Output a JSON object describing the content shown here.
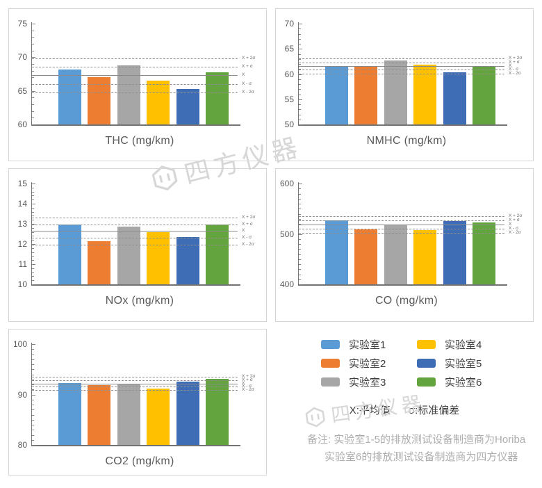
{
  "stat_labels": [
    "X + 2σ",
    "X + σ",
    "X",
    "X - σ",
    "X - 2σ"
  ],
  "legend": {
    "labs": [
      {
        "name": "实验室1",
        "color": "#5B9BD5"
      },
      {
        "name": "实验室2",
        "color": "#ED7D31"
      },
      {
        "name": "实验室3",
        "color": "#A6A6A6"
      },
      {
        "name": "实验室4",
        "color": "#FFC000"
      },
      {
        "name": "实验室5",
        "color": "#3E6CB5"
      },
      {
        "name": "实验室6",
        "color": "#63A43F"
      }
    ],
    "stat_note_x": "X:平均值",
    "stat_note_sigma": "σ:标准偏差",
    "note_line1": "备注: 实验室1-5的排放测试设备制造商为Horiba",
    "note_line2": "实验室6的排放测试设备制造商为四方仪器"
  },
  "watermark": {
    "text": "四方仪器",
    "color": "#d7d7d7"
  },
  "chart_data": [
    {
      "type": "bar",
      "id": "thc",
      "title": "THC (mg/km)",
      "categories": [
        "实验室1",
        "实验室2",
        "实验室3",
        "实验室4",
        "实验室5",
        "实验室6"
      ],
      "values": [
        68.2,
        67.0,
        68.8,
        66.5,
        65.3,
        67.8
      ],
      "ylim": [
        60,
        75
      ],
      "ytick_major": 5,
      "ytick_minor": 1,
      "mean": 67.3,
      "sigma": 1.27,
      "stat_line_labels": [
        "X + 2σ",
        "X + σ",
        "X",
        "X - σ",
        "X - 2σ"
      ],
      "grid": false,
      "legend_position": "separate-panel"
    },
    {
      "type": "bar",
      "id": "nmhc",
      "title": "NMHC (mg/km)",
      "categories": [
        "实验室1",
        "实验室2",
        "实验室3",
        "实验室4",
        "实验室5",
        "实验室6"
      ],
      "values": [
        61.6,
        61.5,
        62.7,
        61.9,
        60.4,
        61.6
      ],
      "ylim": [
        50,
        70
      ],
      "ytick_major": 5,
      "ytick_minor": 1,
      "mean": 61.6,
      "sigma": 0.74,
      "stat_line_labels": [
        "X + 2σ",
        "X + σ",
        "X",
        "X - σ",
        "X - 2σ"
      ],
      "grid": false,
      "legend_position": "separate-panel"
    },
    {
      "type": "bar",
      "id": "nox",
      "title": "NOx (mg/km)",
      "categories": [
        "实验室1",
        "实验室2",
        "实验室3",
        "实验室4",
        "实验室5",
        "实验室6"
      ],
      "values": [
        12.95,
        12.15,
        12.85,
        12.6,
        12.35,
        12.95
      ],
      "ylim": [
        10,
        15
      ],
      "ytick_major": 1,
      "ytick_minor": 0.2,
      "mean": 12.64,
      "sigma": 0.34,
      "stat_line_labels": [
        "X + 2σ",
        "X + σ",
        "X",
        "X - σ",
        "X - 2σ"
      ],
      "grid": false,
      "legend_position": "separate-panel"
    },
    {
      "type": "bar",
      "id": "co",
      "title": "CO (mg/km)",
      "categories": [
        "实验室1",
        "实验室2",
        "实验室3",
        "实验室4",
        "实验室5",
        "实验室6"
      ],
      "values": [
        527,
        509,
        518,
        508,
        526,
        523
      ],
      "ylim": [
        400,
        600
      ],
      "ytick_major": 100,
      "ytick_minor": 10,
      "mean": 518.5,
      "sigma": 8.4,
      "stat_line_labels": [
        "X + 2σ",
        "X + σ",
        "X",
        "X - σ",
        "X - 2σ"
      ],
      "grid": false,
      "legend_position": "separate-panel"
    },
    {
      "type": "bar",
      "id": "co2",
      "title": "CO2 (mg/km)",
      "categories": [
        "实验室1",
        "实验室2",
        "实验室3",
        "实验室4",
        "实验室5",
        "实验室6"
      ],
      "values": [
        92.3,
        91.8,
        92.2,
        91.2,
        92.6,
        93.1
      ],
      "ylim": [
        80,
        100
      ],
      "ytick_major": 10,
      "ytick_minor": 1,
      "mean": 92.2,
      "sigma": 0.65,
      "stat_line_labels": [
        "X + 2σ",
        "X + σ",
        "X",
        "X - σ",
        "X - 2σ"
      ],
      "grid": false,
      "legend_position": "separate-panel"
    }
  ]
}
